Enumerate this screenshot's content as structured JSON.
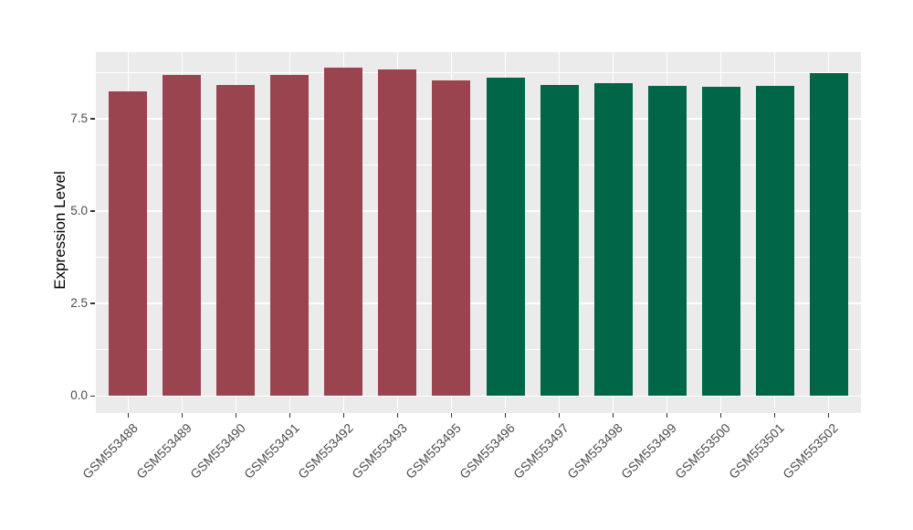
{
  "chart_data": {
    "type": "bar",
    "ylabel": "Expression Level",
    "bars": [
      {
        "label": "GSM553488",
        "value": 8.24,
        "color": "#9A4450"
      },
      {
        "label": "GSM553489",
        "value": 8.68,
        "color": "#9A4450"
      },
      {
        "label": "GSM553490",
        "value": 8.41,
        "color": "#9A4450"
      },
      {
        "label": "GSM553491",
        "value": 8.68,
        "color": "#9A4450"
      },
      {
        "label": "GSM553492",
        "value": 8.87,
        "color": "#9A4450"
      },
      {
        "label": "GSM553493",
        "value": 8.83,
        "color": "#9A4450"
      },
      {
        "label": "GSM553495",
        "value": 8.53,
        "color": "#9A4450"
      },
      {
        "label": "GSM553496",
        "value": 8.61,
        "color": "#006647"
      },
      {
        "label": "GSM553497",
        "value": 8.41,
        "color": "#006647"
      },
      {
        "label": "GSM553498",
        "value": 8.45,
        "color": "#006647"
      },
      {
        "label": "GSM553499",
        "value": 8.39,
        "color": "#006647"
      },
      {
        "label": "GSM553500",
        "value": 8.35,
        "color": "#006647"
      },
      {
        "label": "GSM553501",
        "value": 8.39,
        "color": "#006647"
      },
      {
        "label": "GSM553502",
        "value": 8.74,
        "color": "#006647"
      }
    ],
    "y_ticks": [
      {
        "value": 0,
        "label": "0.0"
      },
      {
        "value": 2.5,
        "label": "2.5"
      },
      {
        "value": 5,
        "label": "5.0"
      },
      {
        "value": 7.5,
        "label": "7.5"
      }
    ],
    "y_minor_ticks": [
      1.25,
      3.75,
      6.25,
      8.75
    ],
    "ylim": [
      -0.46,
      9.3
    ],
    "x_tick_rotation": -45,
    "grid": true,
    "legend": "none",
    "colors": {
      "bar_group_left": "#9A4450",
      "bar_group_right": "#006647",
      "panel_background": "#EBEBEB",
      "gridline": "#FFFFFF",
      "tick_mark": "#333333",
      "axis_text": "#4D4D4D",
      "axis_title": "#000000",
      "figure_background": "#FFFFFF"
    }
  }
}
